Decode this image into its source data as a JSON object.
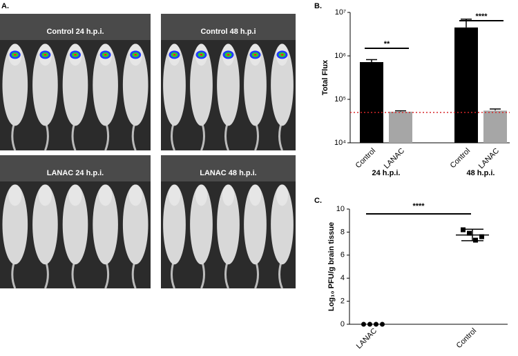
{
  "panels": {
    "a": "A.",
    "b": "B.",
    "c": "C."
  },
  "images": [
    "Control 24 h.p.i.",
    "Control 48 h.p.i",
    "LANAC 24 h.p.i.",
    "LANAC 48 h.p.i."
  ],
  "chart_data": [
    {
      "type": "bar",
      "y_label": "Total Flux",
      "log_scale": true,
      "categories": [
        "Control",
        "LANAC",
        "Control",
        "LANAC"
      ],
      "group_labels": [
        "24 h.p.i.",
        "48 h.p.i."
      ],
      "values": [
        720000,
        52000,
        4500000,
        55000
      ],
      "errors": [
        100000,
        2500,
        2500000,
        5000
      ],
      "colors": [
        "#000000",
        "#a6a6a6",
        "#000000",
        "#a6a6a6"
      ],
      "reference_line": 50000,
      "reference_color": "#d62728",
      "annotations": [
        "**",
        "****"
      ],
      "ylim": [
        10000,
        10000000
      ],
      "yticks": [
        {
          "value": 10000,
          "label": "10⁴"
        },
        {
          "value": 100000,
          "label": "10⁵"
        },
        {
          "value": 1000000,
          "label": "10⁶"
        },
        {
          "value": 10000000,
          "label": "10⁷"
        }
      ]
    },
    {
      "type": "scatter",
      "y_label": "Log₁₀ PFU/g brain tissue",
      "categories": [
        "LANAC",
        "Control"
      ],
      "series": [
        {
          "name": "LANAC",
          "values": [
            0,
            0,
            0,
            0
          ]
        },
        {
          "name": "Control",
          "values": [
            8.2,
            7.9,
            7.3,
            7.6
          ],
          "mean": 7.75,
          "sd": 0.5
        }
      ],
      "annotations": [
        "****"
      ],
      "ylim": [
        0,
        10
      ],
      "yticks": [
        0,
        2,
        4,
        6,
        8,
        10
      ]
    }
  ]
}
